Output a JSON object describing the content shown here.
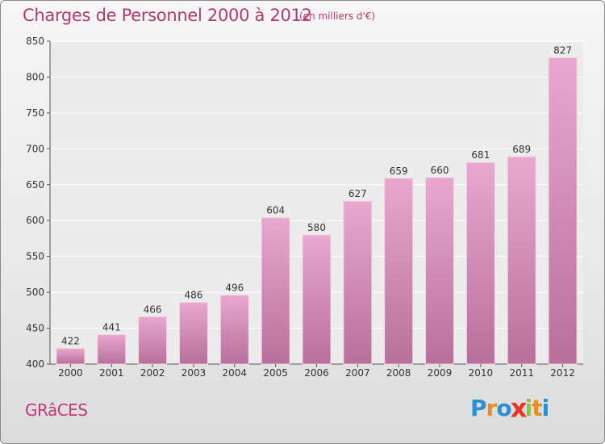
{
  "title": "Charges de Personnel 2000 à 2012",
  "subtitle": "(en milliers d'€)",
  "city": "GRâCES",
  "logo": {
    "text": "Proxiti",
    "letters": [
      {
        "ch": "P",
        "color": "#2b8fd6"
      },
      {
        "ch": "r",
        "color": "#f08c1c"
      },
      {
        "ch": "o",
        "color": "#2b8fd6"
      },
      {
        "ch": "x",
        "color": "#e8352b"
      },
      {
        "ch": "i",
        "color": "#8cc63f"
      },
      {
        "ch": "t",
        "color": "#f08c1c"
      },
      {
        "ch": "i",
        "color": "#2b8fd6"
      }
    ]
  },
  "colors": {
    "bar_top": "#e8a8cf",
    "bar_bottom": "#b8709a",
    "text_accent": "#b03a6e"
  },
  "chart_data": {
    "type": "bar",
    "categories": [
      "2000",
      "2001",
      "2002",
      "2003",
      "2004",
      "2005",
      "2006",
      "2007",
      "2008",
      "2009",
      "2010",
      "2011",
      "2012"
    ],
    "values": [
      422,
      441,
      466,
      486,
      496,
      604,
      580,
      627,
      659,
      660,
      681,
      689,
      827
    ],
    "ylim": [
      400,
      850
    ],
    "yticks": [
      400,
      450,
      500,
      550,
      600,
      650,
      700,
      750,
      800,
      850
    ],
    "grid": true
  }
}
